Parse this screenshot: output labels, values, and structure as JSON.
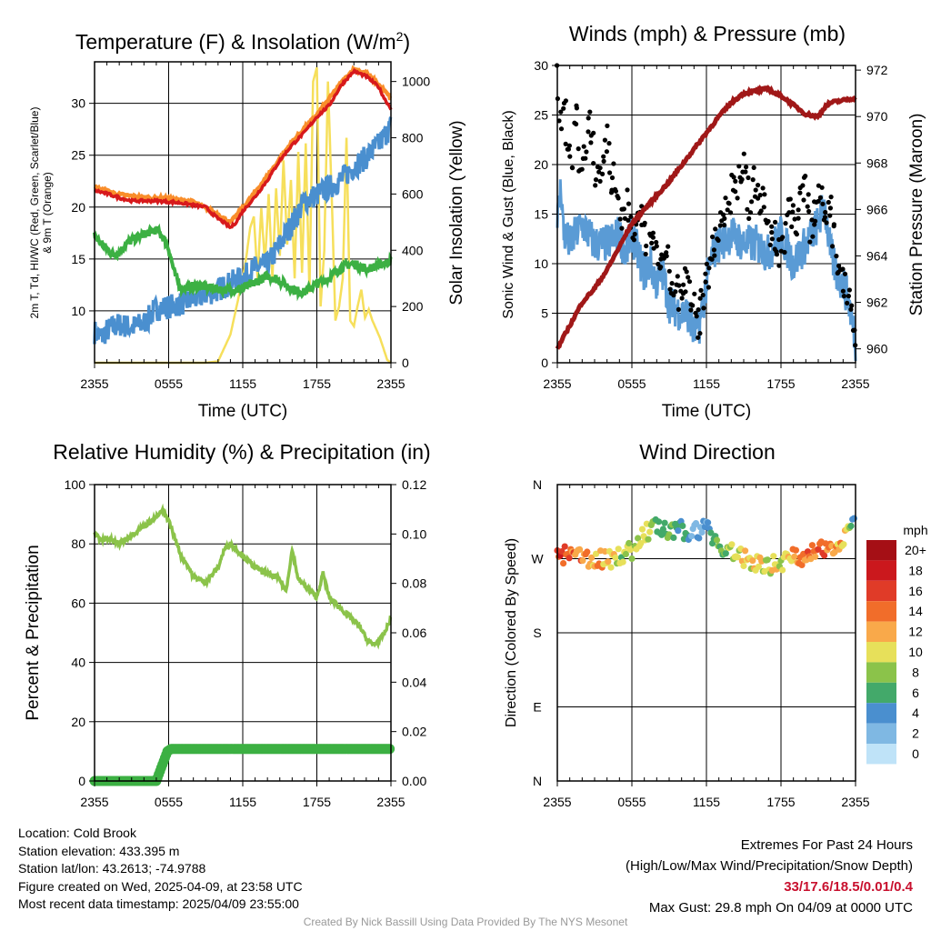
{
  "colors": {
    "temp": "#d7191c",
    "temp9m": "#f98e2b",
    "dew": "#3cb043",
    "wc": "#4a8fcf",
    "insol": "#f6df5b",
    "wind": "#5a9bd5",
    "gust": "#000000",
    "pressure": "#a01818",
    "rh": "#8bc34a",
    "precip": "#3cb043"
  },
  "chart_data": [
    {
      "id": "temp",
      "type": "line",
      "title": "Temperature (F) & Insolation (W/m²)",
      "title_main": "Temperature (F) & Insolation (W/m",
      "title_sup": "2",
      "title_end": ")",
      "xlabel": "Time (UTC)",
      "ylabel_line1": "2m T, Td, HI/WC (Red, Green, Scarlet/Blue)",
      "ylabel_line2": "& 9m T (Orange)",
      "ylabel_right": "Solar Insolation (Yellow)",
      "x_ticks": [
        "2355",
        "0555",
        "1155",
        "1755",
        "2355"
      ],
      "ylim": [
        5,
        34
      ],
      "y_ticks": [
        10,
        15,
        20,
        25,
        30
      ],
      "y2lim": [
        0,
        1070
      ],
      "y2_ticks": [
        0,
        200,
        400,
        600,
        800,
        1000
      ],
      "series": [
        {
          "name": "2m Temperature",
          "color_key": "temp",
          "hours": [
            0,
            1,
            2,
            3,
            4,
            5,
            6,
            7,
            8,
            9,
            9.5,
            10,
            10.5,
            11,
            11.5,
            12,
            13,
            14,
            15,
            16,
            17,
            18,
            19,
            20,
            21,
            22,
            23,
            23.5,
            24
          ],
          "values": [
            21.6,
            21.3,
            20.9,
            20.6,
            20.6,
            20.6,
            20.5,
            20.4,
            20.2,
            20.0,
            19.4,
            18.9,
            18.5,
            18.0,
            18.6,
            19.6,
            21.0,
            22.6,
            24.5,
            26.0,
            27.2,
            28.7,
            29.8,
            31.8,
            33.1,
            32.6,
            31.6,
            30.4,
            29.5
          ]
        },
        {
          "name": "9m Temperature",
          "color_key": "temp9m",
          "hours": [
            0,
            2,
            4,
            6,
            8,
            10,
            11,
            12,
            14,
            16,
            18,
            20,
            21,
            22,
            23,
            24
          ],
          "values": [
            21.9,
            21.2,
            20.9,
            20.8,
            20.5,
            19.3,
            18.5,
            19.9,
            23.0,
            26.3,
            28.9,
            32.0,
            33.3,
            32.9,
            31.8,
            30.5
          ]
        },
        {
          "name": "Dewpoint",
          "color_key": "dew",
          "hours": [
            0,
            0.5,
            1,
            1.5,
            2,
            2.5,
            3,
            4,
            5,
            5.5,
            6,
            6.5,
            7,
            8,
            9,
            10,
            11,
            12,
            13,
            14,
            15,
            16,
            17,
            18,
            19,
            20,
            21,
            22,
            23,
            24
          ],
          "values": [
            17.3,
            16.5,
            16.0,
            15.4,
            15.6,
            16.4,
            16.8,
            17.4,
            17.8,
            17.2,
            16.0,
            13.5,
            12.2,
            12.4,
            12.3,
            12.1,
            12.0,
            12.2,
            12.7,
            13.4,
            12.9,
            12.1,
            11.8,
            12.6,
            13.2,
            14.2,
            14.6,
            14.0,
            14.4,
            14.8
          ]
        },
        {
          "name": "Heat Index / Wind Chill",
          "color_key": "wc",
          "hours": [
            0,
            0.5,
            1,
            2,
            3,
            4,
            5,
            6,
            7,
            8,
            9,
            10,
            11,
            12,
            13,
            14,
            15,
            16,
            17,
            18,
            19,
            20,
            21,
            22,
            23,
            24
          ],
          "values": [
            8.0,
            7.4,
            8.1,
            8.7,
            8.4,
            8.8,
            10.2,
            10.4,
            10.7,
            11.1,
            11.6,
            12.0,
            12.7,
            13.2,
            14.1,
            14.4,
            16.4,
            18.4,
            20.6,
            21.2,
            21.9,
            22.7,
            23.9,
            24.8,
            26.0,
            27.8
          ]
        },
        {
          "name": "Solar Insolation",
          "color_key": "insol",
          "axis": "right",
          "hours": [
            0,
            9,
            10,
            11,
            11.5,
            12,
            12.3,
            12.6,
            12.9,
            13.2,
            13.5,
            13.8,
            14.1,
            14.4,
            14.7,
            15,
            15.3,
            15.6,
            15.9,
            16.2,
            16.5,
            16.8,
            17.1,
            17.4,
            17.7,
            18,
            18.3,
            18.6,
            18.9,
            19.2,
            19.5,
            19.8,
            20.1,
            20.4,
            20.7,
            21,
            21.3,
            21.6,
            21.9,
            22.2,
            22.5,
            22.8,
            23.1,
            23.4,
            23.7,
            24
          ],
          "values": [
            0,
            0,
            5,
            100,
            200,
            300,
            380,
            480,
            520,
            300,
            550,
            350,
            600,
            300,
            620,
            380,
            720,
            420,
            650,
            300,
            750,
            320,
            780,
            250,
            1000,
            1050,
            200,
            400,
            1000,
            600,
            150,
            200,
            300,
            800,
            150,
            130,
            200,
            260,
            160,
            190,
            150,
            120,
            90,
            50,
            10,
            0
          ]
        }
      ]
    },
    {
      "id": "wind",
      "type": "line",
      "title": "Winds (mph) & Pressure (mb)",
      "xlabel": "Time (UTC)",
      "ylabel": "Sonic Wind & Gust (Blue, Black)",
      "ylabel_right": "Station Pressure (Maroon)",
      "x_ticks": [
        "2355",
        "0555",
        "1155",
        "1755",
        "2355"
      ],
      "ylim": [
        0,
        30
      ],
      "y_ticks": [
        0,
        5,
        10,
        15,
        20,
        25,
        30
      ],
      "y2lim": [
        959.4,
        972.2
      ],
      "y2_ticks": [
        960,
        962,
        964,
        966,
        968,
        970,
        972
      ],
      "series": [
        {
          "name": "Sonic Wind",
          "color_key": "wind",
          "hours": [
            0,
            0.3,
            0.5,
            1,
            1.5,
            2,
            3,
            4,
            5,
            5.5,
            6,
            7,
            7.5,
            8,
            8.5,
            9,
            10,
            10.5,
            11,
            11.5,
            12,
            12.5,
            13,
            14,
            15,
            16,
            17,
            18,
            19,
            20,
            21,
            21.5,
            22,
            22.5,
            23,
            23.5,
            24
          ],
          "values": [
            14,
            18,
            13,
            12,
            13,
            14,
            12,
            12,
            13,
            11,
            13,
            9,
            10,
            8,
            9,
            6,
            5,
            5,
            3,
            4,
            8,
            11,
            12,
            13,
            12,
            12,
            11,
            13,
            10,
            12,
            14,
            16,
            11,
            9,
            8,
            6,
            2
          ]
        },
        {
          "name": "Gust",
          "color_key": "gust",
          "marker": "dots",
          "hours": [
            0,
            0.2,
            0.4,
            0.6,
            0.8,
            1,
            1.2,
            1.5,
            1.8,
            2,
            2.3,
            2.6,
            3,
            3.3,
            3.6,
            4,
            4.3,
            4.6,
            5,
            5.3,
            5.6,
            6,
            6.3,
            6.6,
            7,
            7.3,
            7.6,
            8,
            8.3,
            8.6,
            9,
            9.3,
            9.6,
            10,
            10.3,
            10.6,
            11,
            11.3,
            11.6,
            12,
            12.3,
            12.6,
            13,
            13.3,
            13.6,
            14,
            14.3,
            14.6,
            15,
            15.3,
            15.6,
            16,
            16.3,
            16.6,
            17,
            17.3,
            17.6,
            18,
            18.3,
            18.6,
            19,
            19.3,
            19.6,
            20,
            20.3,
            20.6,
            21,
            21.3,
            21.6,
            22,
            22.3,
            22.6,
            23,
            23.3,
            23.6,
            24
          ],
          "values": [
            30,
            26,
            24,
            28,
            20,
            22,
            19,
            27,
            21,
            19,
            22,
            24,
            20,
            19,
            20,
            23,
            18,
            19,
            14,
            15,
            16,
            14,
            13,
            15,
            12,
            14,
            11,
            12,
            10,
            9,
            10,
            7,
            8,
            6,
            8,
            7,
            5,
            4,
            6,
            8,
            10,
            12,
            14,
            16,
            15,
            17,
            19,
            18,
            20,
            17,
            16,
            19,
            15,
            17,
            14,
            13,
            12,
            11,
            13,
            16,
            15,
            14,
            18,
            17,
            14,
            15,
            16,
            18,
            14,
            15,
            12,
            10,
            9,
            8,
            6,
            3
          ]
        },
        {
          "name": "Station Pressure",
          "color_key": "pressure",
          "axis": "right",
          "hours": [
            0,
            1,
            2,
            3,
            4,
            5,
            6,
            7,
            8,
            9,
            10,
            11,
            12,
            13,
            14,
            15,
            16,
            17,
            17.5,
            18,
            19,
            20,
            21,
            21.5,
            22,
            23,
            24
          ],
          "values": [
            960.0,
            961.0,
            962.0,
            962.6,
            963.4,
            964.4,
            965.4,
            966.0,
            966.6,
            967.2,
            967.9,
            968.6,
            969.3,
            970.0,
            970.6,
            971.0,
            971.1,
            971.2,
            971.0,
            970.9,
            970.5,
            970.1,
            970.0,
            970.4,
            970.6,
            970.7,
            970.8
          ]
        }
      ]
    },
    {
      "id": "rh",
      "type": "line",
      "title": "Relative Humidity (%) & Precipitation (in)",
      "xlabel": "",
      "ylabel": "Percent & Precipitation",
      "x_ticks": [
        "2355",
        "0555",
        "1155",
        "1755",
        "2355"
      ],
      "ylim": [
        0,
        100
      ],
      "y_ticks": [
        0,
        20,
        40,
        60,
        80,
        100
      ],
      "y2lim": [
        0,
        0.12
      ],
      "y2_ticks": [
        "0.00",
        "0.02",
        "0.04",
        "0.06",
        "0.08",
        "0.10",
        "0.12"
      ],
      "series": [
        {
          "name": "Relative Humidity",
          "color_key": "rh",
          "hours": [
            0,
            0.5,
            1,
            1.5,
            2,
            3,
            4,
            5,
            5.5,
            6,
            6.5,
            7,
            7.5,
            8,
            8.5,
            9,
            10,
            10.5,
            11,
            11.5,
            12,
            13,
            14,
            15,
            15.5,
            16,
            16.5,
            17,
            18,
            18.5,
            19,
            20,
            21,
            21.5,
            22,
            22.5,
            23,
            23.5,
            24
          ],
          "values": [
            84,
            81,
            82,
            81,
            80,
            83,
            86,
            89,
            91,
            88,
            82,
            76,
            73,
            69,
            68,
            67,
            72,
            78,
            80,
            78,
            76,
            72,
            70,
            68,
            64,
            78,
            68,
            66,
            62,
            70,
            62,
            58,
            54,
            52,
            48,
            46,
            47,
            50,
            55
          ]
        },
        {
          "name": "Precipitation",
          "color_key": "precip",
          "axis": "right",
          "hours": [
            0,
            5,
            5.3,
            5.6,
            5.9,
            6.2,
            24
          ],
          "values": [
            0,
            0,
            0.004,
            0.008,
            0.012,
            0.013,
            0.013
          ]
        }
      ]
    },
    {
      "id": "dir",
      "type": "scatter",
      "title": "Wind Direction",
      "ylabel": "Direction (Colored By Speed)",
      "x_ticks": [
        "2355",
        "0555",
        "1155",
        "1755",
        "2355"
      ],
      "y_ticks": [
        "N",
        "E",
        "S",
        "W",
        "N"
      ],
      "ylim": [
        0,
        360
      ],
      "legend_title": "mph",
      "legend_labels": [
        "20+",
        "18",
        "16",
        "14",
        "12",
        "10",
        "8",
        "6",
        "4",
        "2",
        "0"
      ],
      "legend_colors": [
        "#a50f15",
        "#cb181d",
        "#e03b28",
        "#f16d2a",
        "#f9a94a",
        "#e7e05a",
        "#8bc34a",
        "#43a96a",
        "#4a8fcf",
        "#7fb8e3",
        "#bfe3f8"
      ]
    }
  ],
  "info_left": {
    "location": "Location: Cold Brook",
    "elevation": "Station elevation: 433.395 m",
    "latlon": "Station lat/lon: 43.2613; -74.9788",
    "created": "Figure created on Wed, 2025-04-09, at 23:58 UTC",
    "recent": "Most recent data timestamp: 2025/04/09 23:55:00"
  },
  "info_right": {
    "title": "Extremes For Past 24 Hours",
    "subtitle": "(High/Low/Max Wind/Precipitation/Snow Depth)",
    "values": "33/17.6/18.5/0.01/0.4",
    "gust": "Max Gust: 29.8 mph On 04/09 at 0000 UTC"
  },
  "credit": "Created By Nick Bassill Using Data Provided By The NYS Mesonet"
}
